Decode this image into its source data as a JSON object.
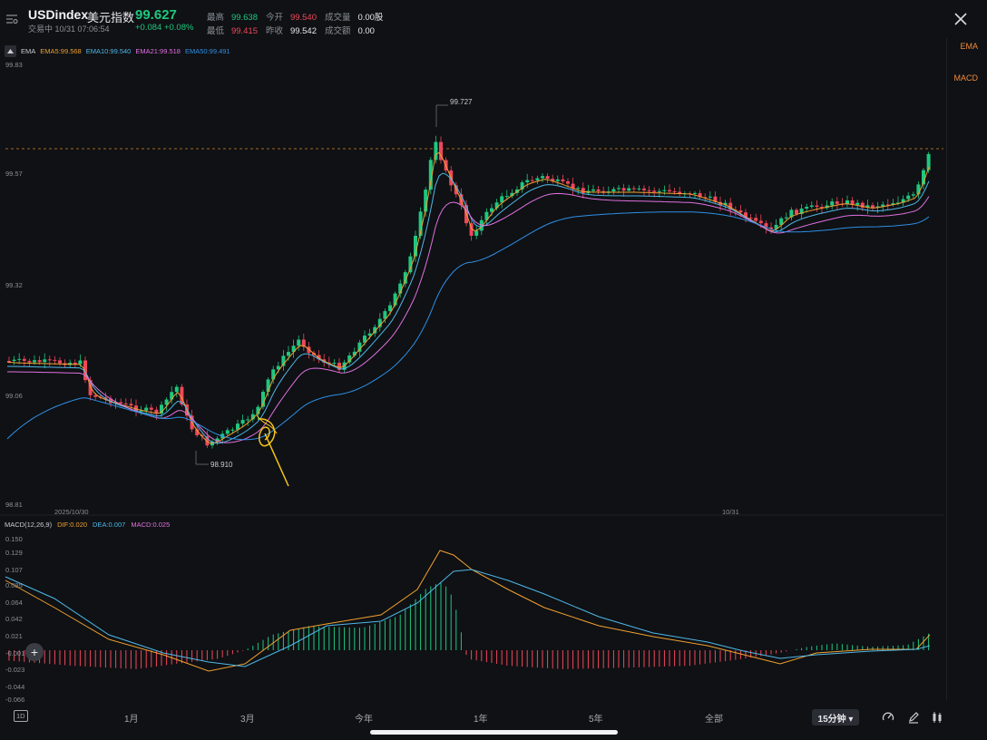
{
  "header": {
    "symbol": "USDindex",
    "name": "美元指数",
    "price": "99.627",
    "status": "交易中 10/31 07:06:54",
    "change": "+0.084 +0.08%",
    "stats": [
      {
        "key": "最高",
        "value": "99.638",
        "color": "#1fc77f"
      },
      {
        "key": "今开",
        "value": "99.540",
        "color": "#f0475a"
      },
      {
        "key": "成交量",
        "value": "0.00股",
        "color": "#e6e8eb"
      },
      {
        "key": "最低",
        "value": "99.415",
        "color": "#f0475a"
      },
      {
        "key": "昨收",
        "value": "99.542",
        "color": "#e6e8eb"
      },
      {
        "key": "成交额",
        "value": "0.00",
        "color": "#e6e8eb"
      }
    ]
  },
  "side_tabs": [
    "EMA",
    "MACD"
  ],
  "ema": {
    "label": "EMA",
    "items": [
      {
        "text": "EMA5:99.568",
        "color": "#f0a030"
      },
      {
        "text": "EMA10:99.540",
        "color": "#4fb7e8"
      },
      {
        "text": "EMA21:99.518",
        "color": "#e070e0"
      },
      {
        "text": "EMA50:99.491",
        "color": "#2f8fe6"
      }
    ]
  },
  "price_axis": [
    "99.83",
    "99.57",
    "99.32",
    "99.06",
    "98.81"
  ],
  "markers": {
    "high": "99.727",
    "low": "98.910"
  },
  "date_labels": [
    "2025/10/30",
    "10/31"
  ],
  "macd": {
    "label": "MACD(12,26,9)",
    "items": [
      {
        "text": "DIF:0.020",
        "color": "#f0a030"
      },
      {
        "text": "DEA:0.007",
        "color": "#4fb7e8"
      },
      {
        "text": "MACD:0.025",
        "color": "#e070e0"
      }
    ],
    "axis": [
      "0.150",
      "0.129",
      "0.107",
      "0.085",
      "0.064",
      "0.042",
      "0.021",
      "-0.001",
      "-0.023",
      "-0.044",
      "-0.066"
    ]
  },
  "bottom": {
    "periods": [
      "1D",
      "1月",
      "3月",
      "今年",
      "1年",
      "5年",
      "全部"
    ],
    "timeframe": "15分钟 ▾"
  },
  "colors": {
    "up": "#1fc77f",
    "down": "#f0475a",
    "bg": "#0f1114"
  }
}
